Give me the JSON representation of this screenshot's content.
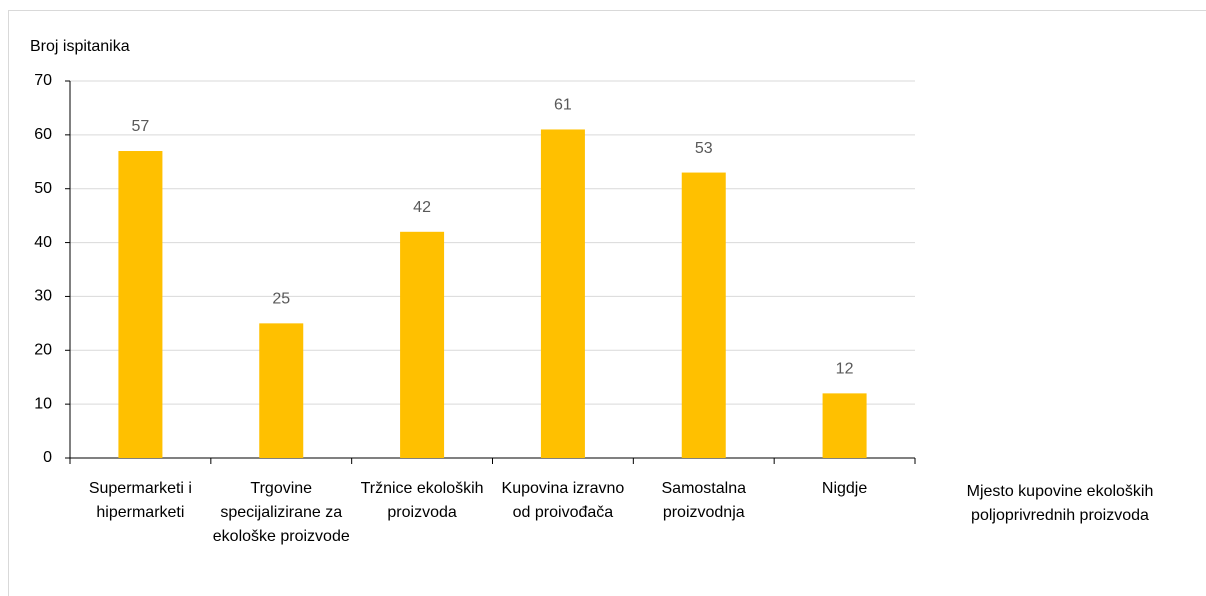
{
  "chart_data": {
    "type": "bar",
    "y_axis_label": "Broj ispitanika",
    "x_axis_label": "Mjesto kupovine ekoloških poljoprivrednih proizvoda",
    "categories": [
      "Supermarketi i hipermarketi",
      "Trgovine specijalizirane za ekološke proizvode",
      "Tržnice ekoloških proizvoda",
      "Kupovina izravno od proivođača",
      "Samostalna proizvodnja",
      "Nigdje"
    ],
    "values": [
      57,
      25,
      42,
      61,
      53,
      12
    ],
    "color": "#ffc000",
    "ylim": [
      0,
      70
    ],
    "yticks": [
      0,
      10,
      20,
      30,
      40,
      50,
      60,
      70
    ],
    "grid": true
  }
}
